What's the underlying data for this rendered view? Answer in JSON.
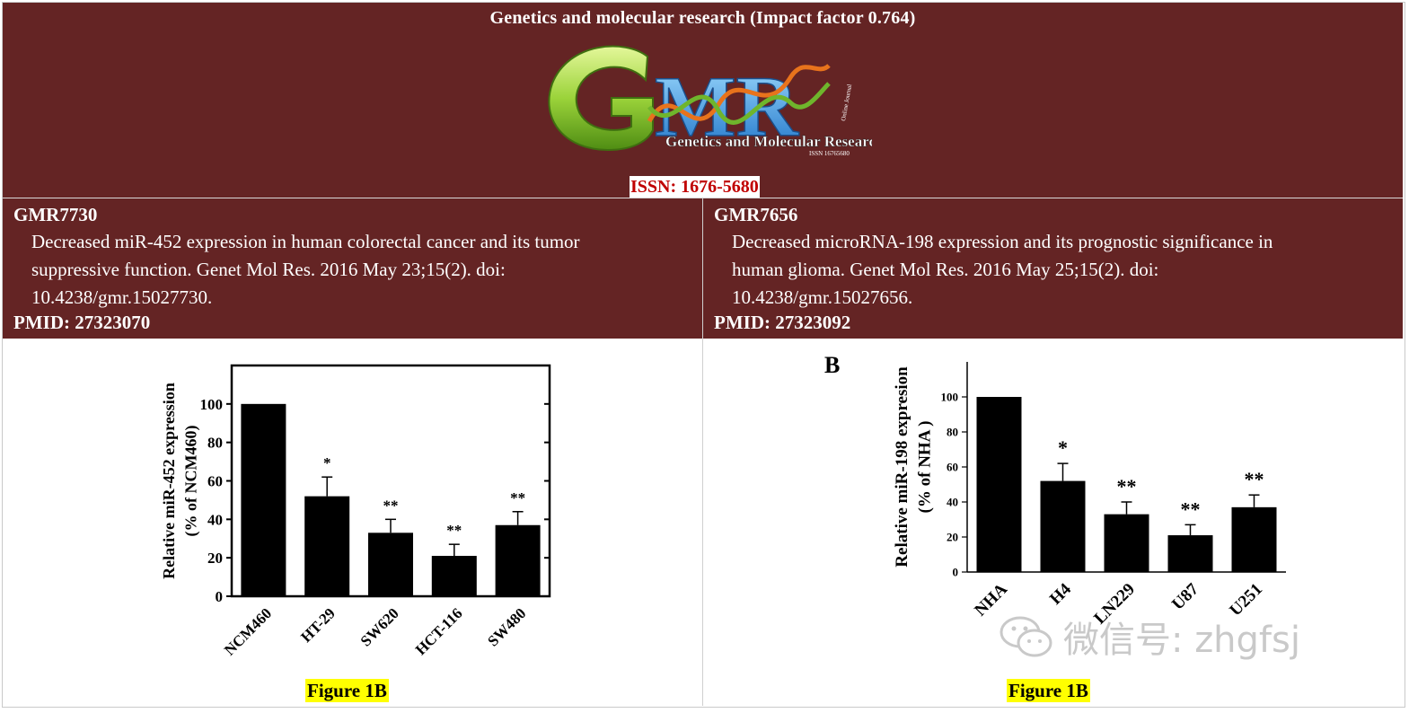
{
  "header": {
    "title": "Genetics and molecular research (Impact factor 0.764)",
    "logo_letters": "GMR",
    "logo_text": "Genetics and Molecular Research",
    "logo_issn_small": "ISSN 16765680",
    "logo_online": "Online Journal",
    "issn": "ISSN: 1676-5680",
    "bg_color": "#642424"
  },
  "articles": [
    {
      "id": "GMR7730",
      "citation_lines": [
        "Decreased miR-452 expression in human colorectal cancer and its tumor",
        "suppressive function. Genet Mol Res. 2016 May 23;15(2). doi:",
        "10.4238/gmr.15027730."
      ],
      "pmid_label": "PMID: ",
      "pmid": "27323070",
      "figure_label": "Figure 1B"
    },
    {
      "id": "GMR7656",
      "citation_lines": [
        "Decreased microRNA-198 expression and its prognostic significance in",
        "human glioma. Genet Mol Res. 2016 May 25;15(2). doi:",
        "10.4238/gmr.15027656."
      ],
      "pmid_label": "PMID: ",
      "pmid": "27323092",
      "figure_label": "Figure 1B"
    }
  ],
  "chart_data": [
    {
      "type": "bar",
      "categories": [
        "NCM460",
        "HT-29",
        "SW620",
        "HCT-116",
        "SW480"
      ],
      "values": [
        100,
        52,
        33,
        21,
        37
      ],
      "errors": [
        0,
        10,
        7,
        6,
        7
      ],
      "significance": [
        "",
        "*",
        "**",
        "**",
        "**"
      ],
      "ylabel": "Relative miR-452 expression",
      "ylabel2": "(% of NCM460)",
      "ylim": [
        0,
        120
      ],
      "yticks": [
        0,
        20,
        40,
        60,
        80,
        100
      ],
      "panel_label": ""
    },
    {
      "type": "bar",
      "categories": [
        "NHA",
        "H4",
        "LN229",
        "U87",
        "U251"
      ],
      "values": [
        100,
        52,
        33,
        21,
        37
      ],
      "errors": [
        0,
        10,
        7,
        6,
        7
      ],
      "significance": [
        "",
        "*",
        "**",
        "**",
        "**"
      ],
      "ylabel": "Relative miR-198 expresion",
      "ylabel2": "(% of NHA )",
      "ylim": [
        0,
        120
      ],
      "yticks": [
        0,
        20,
        40,
        60,
        80,
        100
      ],
      "panel_label": "B"
    }
  ],
  "watermark": {
    "text": "微信号: zhgfsj",
    "icon": "wechat-icon"
  }
}
